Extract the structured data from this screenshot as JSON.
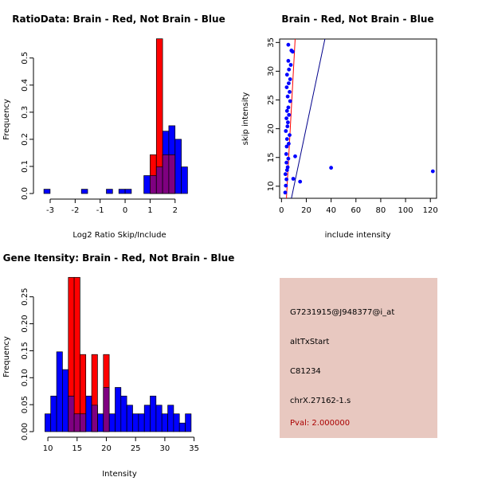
{
  "chart_data": [
    {
      "type": "bar",
      "id": "ratio-hist",
      "title": "RatioData: Brain - Red, Not Brain - Blue",
      "xlabel": "Log2 Ratio Skip/Include",
      "ylabel": "Frequency",
      "xlim": [
        -3.35,
        2.9
      ],
      "ylim": [
        0,
        0.57
      ],
      "xticks": [
        -3,
        -2,
        -1,
        0,
        1,
        2
      ],
      "yticks": [
        0.0,
        0.1,
        0.2,
        0.3,
        0.4,
        0.5
      ],
      "ytick_labels": [
        "0.0",
        "0.1",
        "0.2",
        "0.3",
        "0.4",
        "0.5"
      ],
      "overlap_color": "#7f0080",
      "series": [
        {
          "name": "Not Brain",
          "color": "#0000ff",
          "bins": [
            {
              "x0": -3.25,
              "x1": -3.0,
              "v": 0.016
            },
            {
              "x0": -1.75,
              "x1": -1.5,
              "v": 0.016
            },
            {
              "x0": -0.75,
              "x1": -0.5,
              "v": 0.016
            },
            {
              "x0": -0.25,
              "x1": 0.0,
              "v": 0.016
            },
            {
              "x0": 0.0,
              "x1": 0.25,
              "v": 0.016
            },
            {
              "x0": 0.75,
              "x1": 1.0,
              "v": 0.066
            },
            {
              "x0": 1.0,
              "x1": 1.25,
              "v": 0.066
            },
            {
              "x0": 1.25,
              "x1": 1.5,
              "v": 0.098
            },
            {
              "x0": 1.5,
              "x1": 1.75,
              "v": 0.23
            },
            {
              "x0": 1.75,
              "x1": 2.0,
              "v": 0.25
            },
            {
              "x0": 2.0,
              "x1": 2.25,
              "v": 0.2
            },
            {
              "x0": 2.25,
              "x1": 2.5,
              "v": 0.098
            }
          ]
        },
        {
          "name": "Brain",
          "color": "#ff0000",
          "bins": [
            {
              "x0": 1.0,
              "x1": 1.25,
              "v": 0.143
            },
            {
              "x0": 1.25,
              "x1": 1.5,
              "v": 0.571
            },
            {
              "x0": 1.5,
              "x1": 1.75,
              "v": 0.143
            },
            {
              "x0": 1.75,
              "x1": 2.0,
              "v": 0.143
            }
          ]
        }
      ]
    },
    {
      "type": "scatter",
      "id": "intensity-scatter",
      "title": "Brain - Red, Not Brain - Blue",
      "xlabel": "include intensity",
      "ylabel": "skip intensity",
      "xlim": [
        -1.5,
        125
      ],
      "ylim": [
        7.9,
        35.6
      ],
      "xticks": [
        0,
        20,
        40,
        60,
        80,
        100,
        120
      ],
      "yticks": [
        10,
        15,
        20,
        25,
        30,
        35
      ],
      "point_color": "#0000ff",
      "points": [
        [
          3,
          8.9
        ],
        [
          3.5,
          10.1
        ],
        [
          4,
          11.2
        ],
        [
          3.2,
          12.1
        ],
        [
          4.5,
          12.8
        ],
        [
          5,
          13.3
        ],
        [
          4,
          14.1
        ],
        [
          5.5,
          14.8
        ],
        [
          3.8,
          15.6
        ],
        [
          4.2,
          16.9
        ],
        [
          5.8,
          17.4
        ],
        [
          4.5,
          18.2
        ],
        [
          6.5,
          18.9
        ],
        [
          3.5,
          19.6
        ],
        [
          4.8,
          20.4
        ],
        [
          5.2,
          21.1
        ],
        [
          4,
          21.8
        ],
        [
          6,
          22.4
        ],
        [
          4.5,
          23.1
        ],
        [
          5.5,
          23.7
        ],
        [
          7,
          24.8
        ],
        [
          5,
          25.6
        ],
        [
          6.5,
          26.4
        ],
        [
          4.2,
          27.2
        ],
        [
          5.8,
          27.9
        ],
        [
          7,
          28.6
        ],
        [
          4.5,
          29.4
        ],
        [
          6,
          30.3
        ],
        [
          7.5,
          31.1
        ],
        [
          5.5,
          31.8
        ],
        [
          9,
          33.4
        ],
        [
          8,
          33.6
        ],
        [
          5.5,
          34.6
        ],
        [
          11,
          15.2
        ],
        [
          9.5,
          11.3
        ],
        [
          15,
          10.8
        ],
        [
          40,
          13.2
        ],
        [
          122,
          12.6
        ]
      ],
      "lines": [
        {
          "name": "Brain fit",
          "color": "#ff0000",
          "from": [
            4.0,
            7.9
          ],
          "to": [
            11.0,
            35.6
          ]
        },
        {
          "name": "Not Brain fit",
          "color": "#00008b",
          "from": [
            8.0,
            7.9
          ],
          "to": [
            35.0,
            35.6
          ]
        }
      ]
    },
    {
      "type": "bar",
      "id": "gene-hist",
      "title": "Gene Itensity: Brain - Red, Not Brain - Blue",
      "xlabel": "Intensity",
      "ylabel": "Frequency",
      "xlim": [
        8.9,
        35.6
      ],
      "ylim": [
        0,
        0.285
      ],
      "xticks": [
        10,
        15,
        20,
        25,
        30,
        35
      ],
      "yticks": [
        0.0,
        0.05,
        0.1,
        0.15,
        0.2,
        0.25
      ],
      "ytick_labels": [
        "0.00",
        "0.05",
        "0.10",
        "0.15",
        "0.20",
        "0.25"
      ],
      "overlap_color": "#7f0080",
      "series": [
        {
          "name": "Not Brain",
          "color": "#0000ff",
          "bins": [
            {
              "x0": 9.5,
              "x1": 10.5,
              "v": 0.033
            },
            {
              "x0": 10.5,
              "x1": 11.5,
              "v": 0.066
            },
            {
              "x0": 11.5,
              "x1": 12.5,
              "v": 0.148
            },
            {
              "x0": 12.5,
              "x1": 13.5,
              "v": 0.115
            },
            {
              "x0": 13.5,
              "x1": 14.5,
              "v": 0.066
            },
            {
              "x0": 14.5,
              "x1": 15.5,
              "v": 0.033
            },
            {
              "x0": 15.5,
              "x1": 16.5,
              "v": 0.033
            },
            {
              "x0": 16.5,
              "x1": 17.5,
              "v": 0.066
            },
            {
              "x0": 17.5,
              "x1": 18.5,
              "v": 0.049
            },
            {
              "x0": 18.5,
              "x1": 19.5,
              "v": 0.033
            },
            {
              "x0": 19.5,
              "x1": 20.5,
              "v": 0.082
            },
            {
              "x0": 20.5,
              "x1": 21.5,
              "v": 0.033
            },
            {
              "x0": 21.5,
              "x1": 22.5,
              "v": 0.082
            },
            {
              "x0": 22.5,
              "x1": 23.5,
              "v": 0.066
            },
            {
              "x0": 23.5,
              "x1": 24.5,
              "v": 0.049
            },
            {
              "x0": 24.5,
              "x1": 25.5,
              "v": 0.033
            },
            {
              "x0": 25.5,
              "x1": 26.5,
              "v": 0.033
            },
            {
              "x0": 26.5,
              "x1": 27.5,
              "v": 0.049
            },
            {
              "x0": 27.5,
              "x1": 28.5,
              "v": 0.066
            },
            {
              "x0": 28.5,
              "x1": 29.5,
              "v": 0.049
            },
            {
              "x0": 29.5,
              "x1": 30.5,
              "v": 0.033
            },
            {
              "x0": 30.5,
              "x1": 31.5,
              "v": 0.049
            },
            {
              "x0": 31.5,
              "x1": 32.5,
              "v": 0.033
            },
            {
              "x0": 32.5,
              "x1": 33.5,
              "v": 0.016
            },
            {
              "x0": 33.5,
              "x1": 34.5,
              "v": 0.033
            }
          ]
        },
        {
          "name": "Brain",
          "color": "#ff0000",
          "bins": [
            {
              "x0": 13.5,
              "x1": 14.5,
              "v": 0.286
            },
            {
              "x0": 14.5,
              "x1": 15.5,
              "v": 0.286
            },
            {
              "x0": 15.5,
              "x1": 16.5,
              "v": 0.143
            },
            {
              "x0": 17.5,
              "x1": 18.5,
              "v": 0.143
            },
            {
              "x0": 19.5,
              "x1": 20.5,
              "v": 0.143
            }
          ]
        }
      ]
    }
  ],
  "info": {
    "probe_id": "G7231915@J948377@i_at",
    "event_type": "altTxStart",
    "gene_id": "C81234",
    "location": "chrX.27162-1.s",
    "pval": "Pval: 2.000000"
  }
}
